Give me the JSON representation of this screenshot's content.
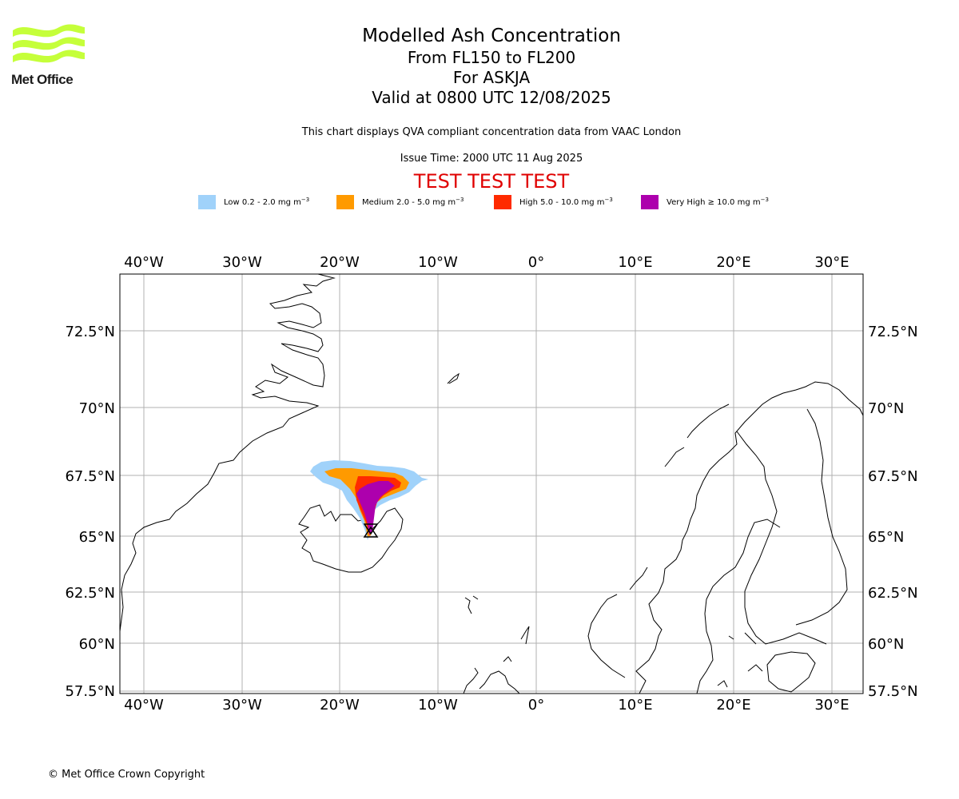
{
  "logo": {
    "text": "Met Office",
    "color": "#c5ff3a"
  },
  "header": {
    "title": "Modelled Ash Concentration",
    "levels": "From FL150 to FL200",
    "volcano": "For ASKJA",
    "valid": "Valid at 0800 UTC 12/08/2025",
    "compliance_note": "This chart displays QVA compliant concentration data from VAAC London",
    "issue_time": "Issue Time: 2000 UTC 11 Aug 2025",
    "test_banner": "TEST TEST TEST"
  },
  "legend": [
    {
      "name": "Low 0.2 - 2.0 mg m",
      "exponent": "−3",
      "color": "#a0d2fa"
    },
    {
      "name": "Medium 2.0 - 5.0 mg m",
      "exponent": "−3",
      "color": "#ff9a00"
    },
    {
      "name": "High 5.0 - 10.0 mg m",
      "exponent": "−3",
      "color": "#ff2a00"
    },
    {
      "name": "Very High ≥ 10.0 mg m",
      "exponent": "−3",
      "color": "#ad00ad"
    }
  ],
  "map": {
    "lon_range": [
      -42.5,
      33
    ],
    "lat_range": [
      57.3,
      74.4
    ],
    "lon_ticks": [
      "40°W",
      "30°W",
      "20°W",
      "10°W",
      "0°",
      "10°E",
      "20°E",
      "30°E"
    ],
    "lat_ticks": [
      "72.5°N",
      "70°N",
      "67.5°N",
      "65°N",
      "62.5°N",
      "60°N",
      "57.5°N"
    ],
    "gridlines": true,
    "source_volcano": "ASKJA"
  },
  "footer": {
    "copyright": "© Met Office Crown Copyright"
  }
}
